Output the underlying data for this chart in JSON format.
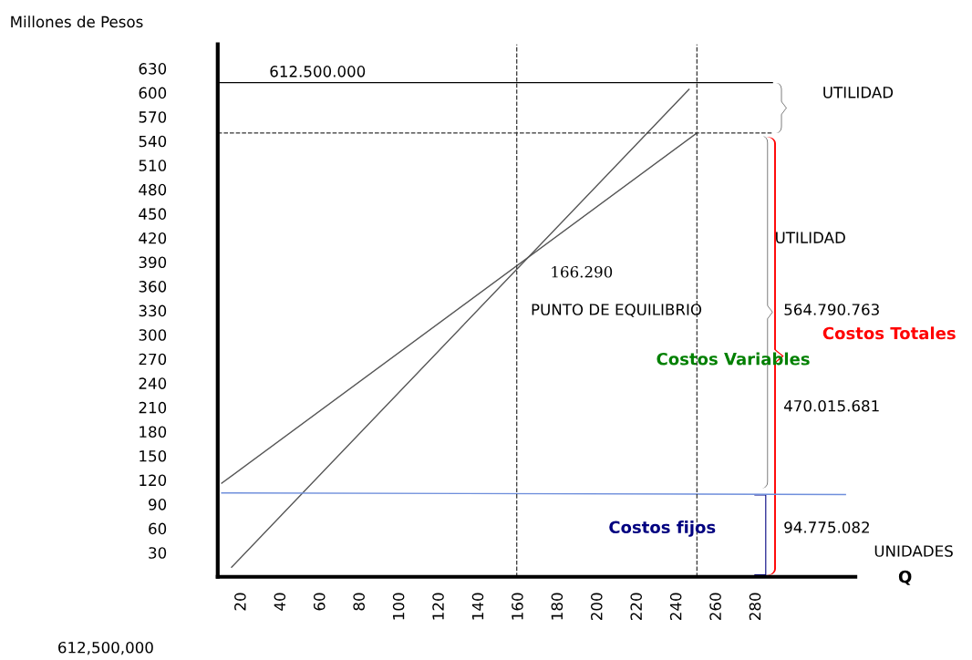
{
  "chart_data": {
    "type": "line",
    "xlim": [
      8,
      330
    ],
    "ylim": [
      0,
      660
    ],
    "xticks": [
      20,
      40,
      60,
      80,
      100,
      120,
      140,
      160,
      180,
      200,
      220,
      240,
      260,
      280
    ],
    "yticks": [
      30,
      60,
      90,
      120,
      150,
      180,
      210,
      240,
      270,
      300,
      330,
      360,
      390,
      420,
      450,
      480,
      510,
      540,
      570,
      600,
      630
    ],
    "ylabel": "Millones de Pesos",
    "grid": false,
    "legend": false,
    "marker": "none",
    "line_style": "solid",
    "series": [
      {
        "color": "#555555",
        "x": [
          15,
          246
        ],
        "values": [
          12,
          604
        ]
      },
      {
        "color": "#555555",
        "x": [
          10,
          250
        ],
        "values": [
          116,
          550
        ]
      },
      {
        "color": "#6f8fdc",
        "x": [
          10,
          325
        ],
        "values": [
          104,
          102
        ]
      }
    ],
    "ref_lines": [
      {
        "axis": "y",
        "value": 612.5,
        "label": "612.500.000",
        "color": "#000000",
        "line_style": "solid"
      },
      {
        "axis": "y",
        "value": 550,
        "color": "#333333",
        "line_style": "dashed"
      },
      {
        "axis": "x",
        "value": 159,
        "color": "#333333",
        "line_style": "dashed"
      },
      {
        "axis": "x",
        "value": 250,
        "color": "#333333",
        "line_style": "dashed"
      }
    ],
    "annotations": [
      "UTILIDAD",
      "UTILIDAD",
      "166.290",
      "PUNTO DE EQUILIBRIO",
      "564.790.763",
      "Costos Totales",
      "Costos Variables",
      "470.015.681",
      "Costos fijos",
      "94.775.082",
      "UNIDADES",
      "Q",
      "612,500,000"
    ]
  }
}
